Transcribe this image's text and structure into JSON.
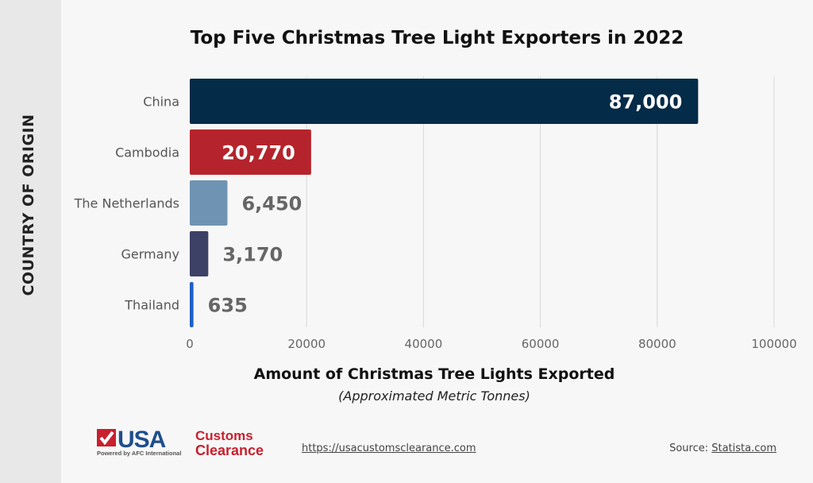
{
  "chart_data": {
    "type": "bar",
    "orientation": "horizontal",
    "title": "Top Five Christmas Tree Light Exporters in 2022",
    "ylabel": "COUNTRY OF ORIGIN",
    "xlabel": "Amount of Christmas Tree Lights Exported",
    "xlabel_sub": "(Approximated Metric Tonnes)",
    "categories": [
      "China",
      "Cambodia",
      "The Netherlands",
      "Germany",
      "Thailand"
    ],
    "values": [
      87000,
      20770,
      6450,
      3170,
      635
    ],
    "value_labels": [
      "87,000",
      "20,770",
      "6,450",
      "3,170",
      "635"
    ],
    "colors": [
      "#042b48",
      "#b5242c",
      "#6f93b3",
      "#3d4166",
      "#1f5fc8"
    ],
    "xlim": [
      0,
      100000
    ],
    "xticks": [
      "0",
      "20000",
      "40000",
      "60000",
      "80000",
      "100000"
    ],
    "grid": true
  },
  "footer": {
    "logo_text": "USA Customs Clearance",
    "logo_sub": "Powered by AFC International",
    "url": "https://usacustomsclearance.com",
    "source_label": "Source:",
    "source_link": "Statista.com"
  }
}
